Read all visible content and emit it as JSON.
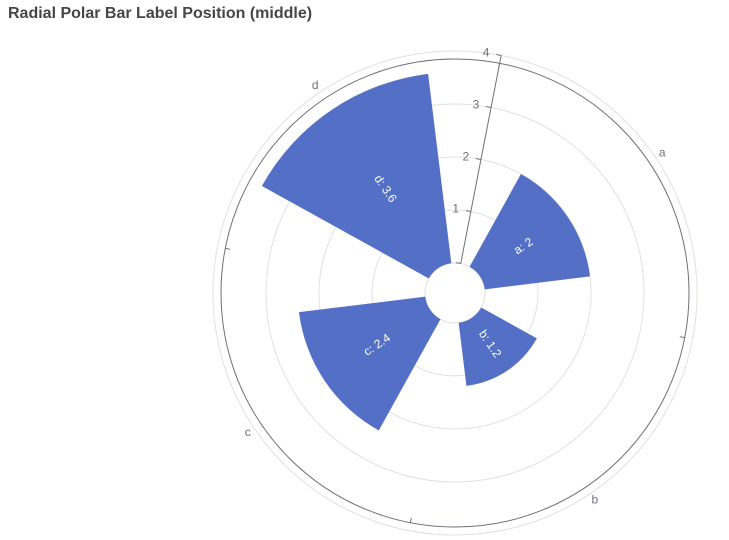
{
  "chart_data": {
    "type": "bar",
    "subtype": "polar-radial",
    "title": "Radial Polar Bar Label Position (middle)",
    "categories": [
      "a",
      "b",
      "c",
      "d"
    ],
    "values": [
      2,
      1.2,
      2.4,
      3.6
    ],
    "bar_labels": [
      "a: 2",
      "b: 1.2",
      "c: 2.4",
      "d: 3.6"
    ],
    "radius_axis": {
      "min": 0,
      "max": 4,
      "ticks": [
        "0",
        "1",
        "2",
        "3",
        "4"
      ]
    },
    "label_position": "middle",
    "colors": {
      "bar": "#5470c6",
      "axis": "#6e7079",
      "split_line": "#e0e0e0",
      "title": "#464646"
    }
  }
}
